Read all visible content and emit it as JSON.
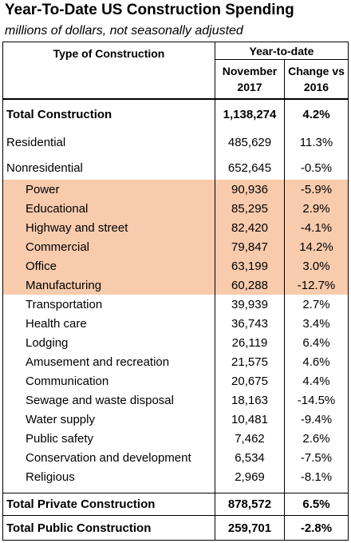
{
  "header": {
    "title": "Year-To-Date US Construction Spending",
    "subtitle": "millions of dollars, not seasonally adjusted"
  },
  "table": {
    "group_header": "Year-to-date",
    "columns": [
      "Type of Construction",
      "November 2017",
      "Change vs 2016"
    ],
    "rows": [
      [
        "Total Construction",
        "1,138,274",
        "4.2%"
      ],
      [
        "Residential",
        "485,629",
        "11.3%"
      ],
      [
        "Nonresidential",
        "652,645",
        "-0.5%"
      ],
      [
        "Power",
        "90,936",
        "-5.9%"
      ],
      [
        "Educational",
        "85,295",
        "2.9%"
      ],
      [
        "Highway and street",
        "82,420",
        "-4.1%"
      ],
      [
        "Commercial",
        "79,847",
        "14.2%"
      ],
      [
        "Office",
        "63,199",
        "3.0%"
      ],
      [
        "Manufacturing",
        "60,288",
        "-12.7%"
      ],
      [
        "Transportation",
        "39,939",
        "2.7%"
      ],
      [
        "Health care",
        "36,743",
        "3.4%"
      ],
      [
        "Lodging",
        "26,119",
        "6.4%"
      ],
      [
        "Amusement and recreation",
        "21,575",
        "4.6%"
      ],
      [
        "Communication",
        "20,675",
        "4.4%"
      ],
      [
        "Sewage and waste disposal",
        "18,163",
        "-14.5%"
      ],
      [
        "Water supply",
        "10,481",
        "-9.4%"
      ],
      [
        "Public safety",
        "7,462",
        "2.6%"
      ],
      [
        "Conservation and development",
        "6,534",
        "-7.5%"
      ],
      [
        "Religious",
        "2,969",
        "-8.1%"
      ],
      [
        "Total Private Construction",
        "878,572",
        "6.5%"
      ],
      [
        "Total Public Construction",
        "259,701",
        "-2.8%"
      ]
    ]
  }
}
